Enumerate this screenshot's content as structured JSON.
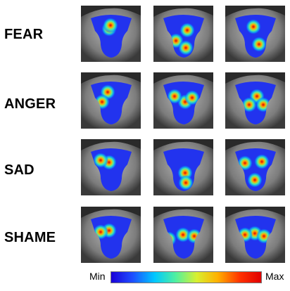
{
  "rows": [
    {
      "label": "FEAR"
    },
    {
      "label": "ANGER"
    },
    {
      "label": "SAD"
    },
    {
      "label": "SHAME"
    }
  ],
  "legend": {
    "min_label": "Min",
    "max_label": "Max",
    "colormap": [
      "#1a00d8",
      "#1f4cff",
      "#00c8ff",
      "#50f0a0",
      "#d8f030",
      "#ffb000",
      "#ff3000",
      "#e00000"
    ]
  },
  "colors": {
    "background": "#ffffff",
    "face_base": "#8e8e8e",
    "heat_base": "#2233ee"
  }
}
